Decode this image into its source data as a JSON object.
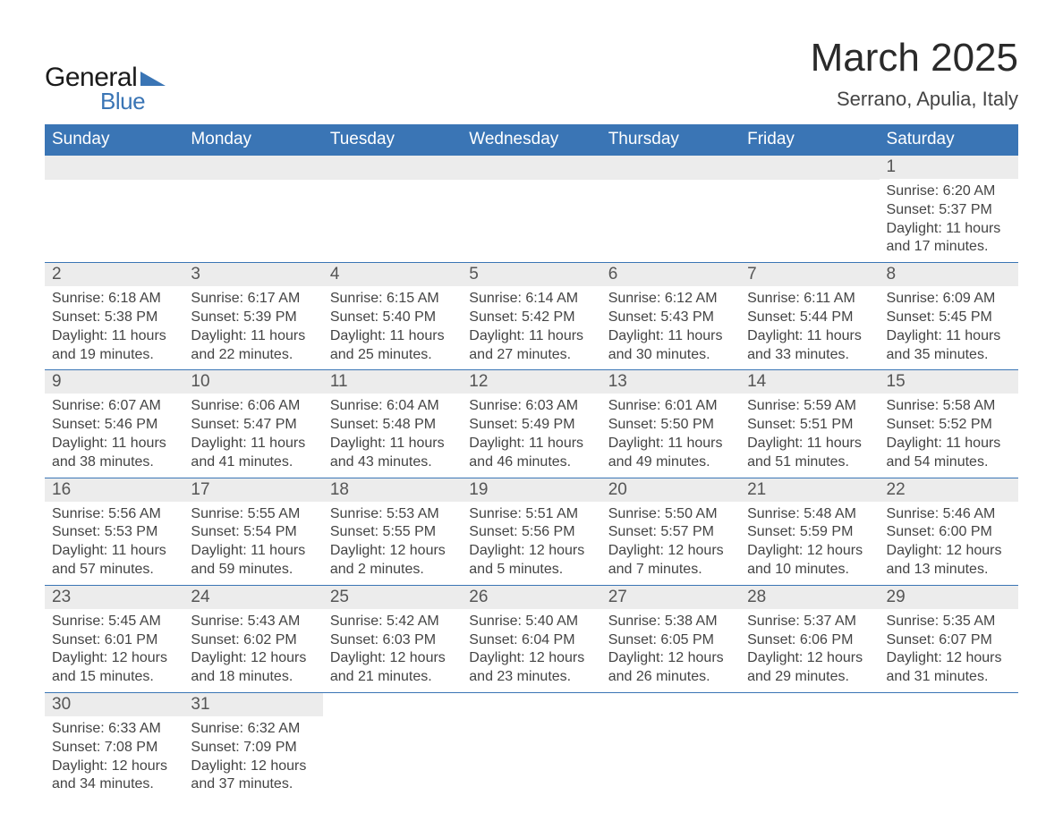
{
  "logo": {
    "text_general": "General",
    "text_blue": "Blue",
    "shape_color": "#3a75b5"
  },
  "header": {
    "month_title": "March 2025",
    "location": "Serrano, Apulia, Italy",
    "title_fontsize": 44,
    "location_fontsize": 22,
    "title_color": "#2a2a2a"
  },
  "calendar": {
    "type": "table",
    "header_bg": "#3a75b5",
    "header_fg": "#ffffff",
    "daynum_bg": "#ececec",
    "border_color": "#3a75b5",
    "text_color": "#444444",
    "cell_fontsize": 16,
    "daynum_fontsize": 19,
    "days_of_week": [
      "Sunday",
      "Monday",
      "Tuesday",
      "Wednesday",
      "Thursday",
      "Friday",
      "Saturday"
    ],
    "weeks": [
      [
        null,
        null,
        null,
        null,
        null,
        null,
        {
          "n": "1",
          "sunrise": "Sunrise: 6:20 AM",
          "sunset": "Sunset: 5:37 PM",
          "daylight": "Daylight: 11 hours and 17 minutes."
        }
      ],
      [
        {
          "n": "2",
          "sunrise": "Sunrise: 6:18 AM",
          "sunset": "Sunset: 5:38 PM",
          "daylight": "Daylight: 11 hours and 19 minutes."
        },
        {
          "n": "3",
          "sunrise": "Sunrise: 6:17 AM",
          "sunset": "Sunset: 5:39 PM",
          "daylight": "Daylight: 11 hours and 22 minutes."
        },
        {
          "n": "4",
          "sunrise": "Sunrise: 6:15 AM",
          "sunset": "Sunset: 5:40 PM",
          "daylight": "Daylight: 11 hours and 25 minutes."
        },
        {
          "n": "5",
          "sunrise": "Sunrise: 6:14 AM",
          "sunset": "Sunset: 5:42 PM",
          "daylight": "Daylight: 11 hours and 27 minutes."
        },
        {
          "n": "6",
          "sunrise": "Sunrise: 6:12 AM",
          "sunset": "Sunset: 5:43 PM",
          "daylight": "Daylight: 11 hours and 30 minutes."
        },
        {
          "n": "7",
          "sunrise": "Sunrise: 6:11 AM",
          "sunset": "Sunset: 5:44 PM",
          "daylight": "Daylight: 11 hours and 33 minutes."
        },
        {
          "n": "8",
          "sunrise": "Sunrise: 6:09 AM",
          "sunset": "Sunset: 5:45 PM",
          "daylight": "Daylight: 11 hours and 35 minutes."
        }
      ],
      [
        {
          "n": "9",
          "sunrise": "Sunrise: 6:07 AM",
          "sunset": "Sunset: 5:46 PM",
          "daylight": "Daylight: 11 hours and 38 minutes."
        },
        {
          "n": "10",
          "sunrise": "Sunrise: 6:06 AM",
          "sunset": "Sunset: 5:47 PM",
          "daylight": "Daylight: 11 hours and 41 minutes."
        },
        {
          "n": "11",
          "sunrise": "Sunrise: 6:04 AM",
          "sunset": "Sunset: 5:48 PM",
          "daylight": "Daylight: 11 hours and 43 minutes."
        },
        {
          "n": "12",
          "sunrise": "Sunrise: 6:03 AM",
          "sunset": "Sunset: 5:49 PM",
          "daylight": "Daylight: 11 hours and 46 minutes."
        },
        {
          "n": "13",
          "sunrise": "Sunrise: 6:01 AM",
          "sunset": "Sunset: 5:50 PM",
          "daylight": "Daylight: 11 hours and 49 minutes."
        },
        {
          "n": "14",
          "sunrise": "Sunrise: 5:59 AM",
          "sunset": "Sunset: 5:51 PM",
          "daylight": "Daylight: 11 hours and 51 minutes."
        },
        {
          "n": "15",
          "sunrise": "Sunrise: 5:58 AM",
          "sunset": "Sunset: 5:52 PM",
          "daylight": "Daylight: 11 hours and 54 minutes."
        }
      ],
      [
        {
          "n": "16",
          "sunrise": "Sunrise: 5:56 AM",
          "sunset": "Sunset: 5:53 PM",
          "daylight": "Daylight: 11 hours and 57 minutes."
        },
        {
          "n": "17",
          "sunrise": "Sunrise: 5:55 AM",
          "sunset": "Sunset: 5:54 PM",
          "daylight": "Daylight: 11 hours and 59 minutes."
        },
        {
          "n": "18",
          "sunrise": "Sunrise: 5:53 AM",
          "sunset": "Sunset: 5:55 PM",
          "daylight": "Daylight: 12 hours and 2 minutes."
        },
        {
          "n": "19",
          "sunrise": "Sunrise: 5:51 AM",
          "sunset": "Sunset: 5:56 PM",
          "daylight": "Daylight: 12 hours and 5 minutes."
        },
        {
          "n": "20",
          "sunrise": "Sunrise: 5:50 AM",
          "sunset": "Sunset: 5:57 PM",
          "daylight": "Daylight: 12 hours and 7 minutes."
        },
        {
          "n": "21",
          "sunrise": "Sunrise: 5:48 AM",
          "sunset": "Sunset: 5:59 PM",
          "daylight": "Daylight: 12 hours and 10 minutes."
        },
        {
          "n": "22",
          "sunrise": "Sunrise: 5:46 AM",
          "sunset": "Sunset: 6:00 PM",
          "daylight": "Daylight: 12 hours and 13 minutes."
        }
      ],
      [
        {
          "n": "23",
          "sunrise": "Sunrise: 5:45 AM",
          "sunset": "Sunset: 6:01 PM",
          "daylight": "Daylight: 12 hours and 15 minutes."
        },
        {
          "n": "24",
          "sunrise": "Sunrise: 5:43 AM",
          "sunset": "Sunset: 6:02 PM",
          "daylight": "Daylight: 12 hours and 18 minutes."
        },
        {
          "n": "25",
          "sunrise": "Sunrise: 5:42 AM",
          "sunset": "Sunset: 6:03 PM",
          "daylight": "Daylight: 12 hours and 21 minutes."
        },
        {
          "n": "26",
          "sunrise": "Sunrise: 5:40 AM",
          "sunset": "Sunset: 6:04 PM",
          "daylight": "Daylight: 12 hours and 23 minutes."
        },
        {
          "n": "27",
          "sunrise": "Sunrise: 5:38 AM",
          "sunset": "Sunset: 6:05 PM",
          "daylight": "Daylight: 12 hours and 26 minutes."
        },
        {
          "n": "28",
          "sunrise": "Sunrise: 5:37 AM",
          "sunset": "Sunset: 6:06 PM",
          "daylight": "Daylight: 12 hours and 29 minutes."
        },
        {
          "n": "29",
          "sunrise": "Sunrise: 5:35 AM",
          "sunset": "Sunset: 6:07 PM",
          "daylight": "Daylight: 12 hours and 31 minutes."
        }
      ],
      [
        {
          "n": "30",
          "sunrise": "Sunrise: 6:33 AM",
          "sunset": "Sunset: 7:08 PM",
          "daylight": "Daylight: 12 hours and 34 minutes."
        },
        {
          "n": "31",
          "sunrise": "Sunrise: 6:32 AM",
          "sunset": "Sunset: 7:09 PM",
          "daylight": "Daylight: 12 hours and 37 minutes."
        },
        null,
        null,
        null,
        null,
        null
      ]
    ]
  }
}
